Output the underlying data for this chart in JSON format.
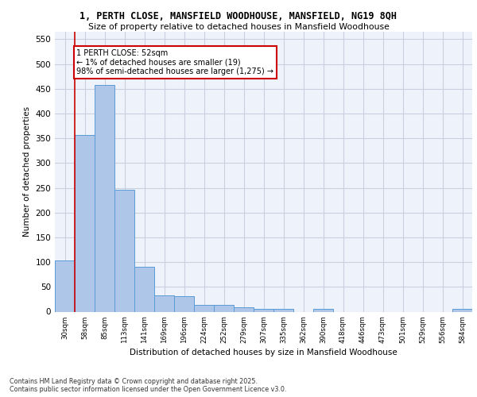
{
  "title_line1": "1, PERTH CLOSE, MANSFIELD WOODHOUSE, MANSFIELD, NG19 8QH",
  "title_line2": "Size of property relative to detached houses in Mansfield Woodhouse",
  "xlabel": "Distribution of detached houses by size in Mansfield Woodhouse",
  "ylabel": "Number of detached properties",
  "categories": [
    "30sqm",
    "58sqm",
    "85sqm",
    "113sqm",
    "141sqm",
    "169sqm",
    "196sqm",
    "224sqm",
    "252sqm",
    "279sqm",
    "307sqm",
    "335sqm",
    "362sqm",
    "390sqm",
    "418sqm",
    "446sqm",
    "473sqm",
    "501sqm",
    "529sqm",
    "556sqm",
    "584sqm"
  ],
  "values": [
    103,
    357,
    458,
    246,
    90,
    33,
    32,
    14,
    14,
    9,
    6,
    5,
    0,
    5,
    0,
    0,
    0,
    0,
    0,
    0,
    5
  ],
  "bar_color": "#aec6e8",
  "bar_edge_color": "#5b9bd5",
  "grid_color": "#c8d0e0",
  "bg_color": "#eef2fb",
  "annotation_text": "1 PERTH CLOSE: 52sqm\n← 1% of detached houses are smaller (19)\n98% of semi-detached houses are larger (1,275) →",
  "annotation_box_color": "#ffffff",
  "annotation_box_edge": "#cc0000",
  "vline_color": "#cc0000",
  "ylim": [
    0,
    565
  ],
  "yticks": [
    0,
    50,
    100,
    150,
    200,
    250,
    300,
    350,
    400,
    450,
    500,
    550
  ],
  "footer_line1": "Contains HM Land Registry data © Crown copyright and database right 2025.",
  "footer_line2": "Contains public sector information licensed under the Open Government Licence v3.0."
}
